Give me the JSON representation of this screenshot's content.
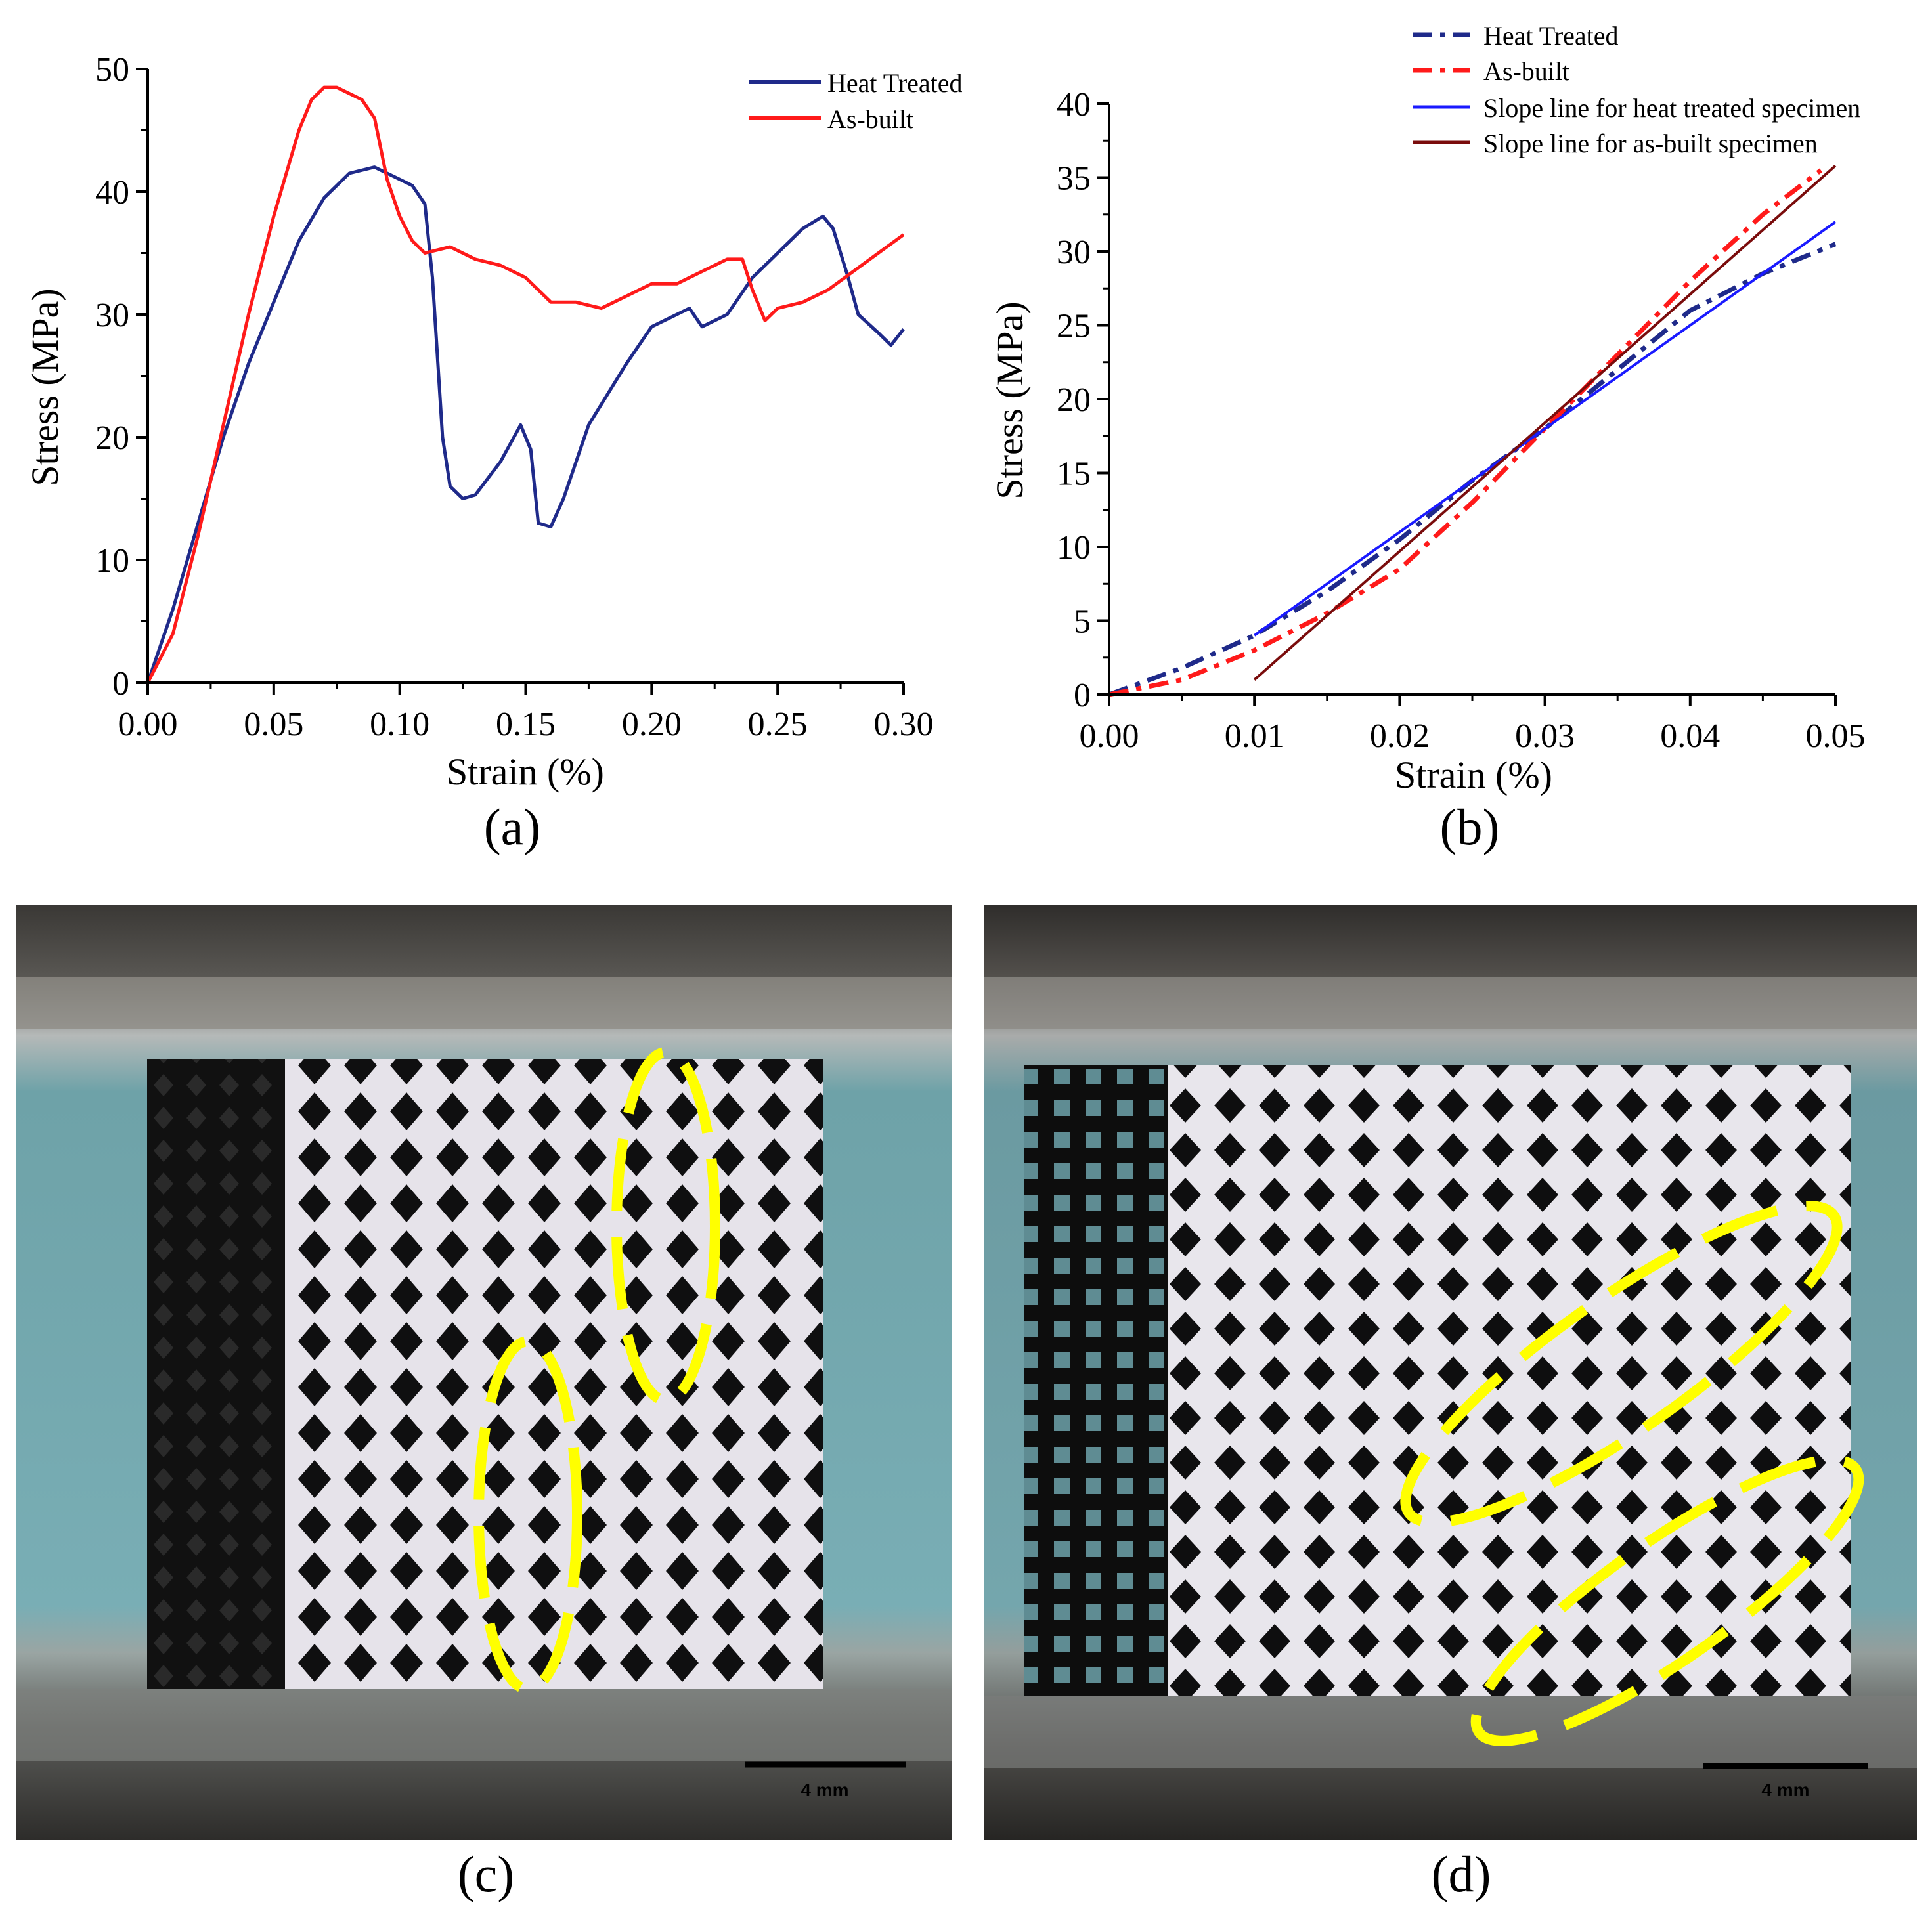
{
  "colors": {
    "heat_treated": "#1f2a8a",
    "as_built": "#ff1a1a",
    "slope_heat": "#1a1aff",
    "slope_asbuilt": "#7a0c0c",
    "highlight": "#ffff00"
  },
  "panels": {
    "a": "(a)",
    "b": "(b)",
    "c": "(c)",
    "d": "(d)"
  },
  "chart_data": [
    {
      "type": "line",
      "panel": "(a)",
      "xlabel": "Strain (%)",
      "ylabel": "Stress (MPa)",
      "xlim": [
        0,
        0.3
      ],
      "ylim": [
        0,
        50
      ],
      "xticks": [
        "0.00",
        "0.05",
        "0.10",
        "0.15",
        "0.20",
        "0.25",
        "0.30"
      ],
      "yticks": [
        "0",
        "10",
        "20",
        "30",
        "40",
        "50"
      ],
      "legend": "top-right",
      "series": [
        {
          "name": "Heat Treated",
          "x": [
            0,
            0.01,
            0.02,
            0.03,
            0.04,
            0.05,
            0.06,
            0.07,
            0.08,
            0.09,
            0.1,
            0.105,
            0.11,
            0.113,
            0.117,
            0.12,
            0.125,
            0.13,
            0.14,
            0.148,
            0.152,
            0.155,
            0.16,
            0.165,
            0.175,
            0.19,
            0.2,
            0.21,
            0.215,
            0.22,
            0.23,
            0.235,
            0.24,
            0.25,
            0.26,
            0.268,
            0.272,
            0.278,
            0.282,
            0.29,
            0.295,
            0.3
          ],
          "values": [
            0,
            6,
            13,
            20,
            26,
            31,
            36,
            39.5,
            41.5,
            42,
            41,
            40.5,
            39,
            33,
            20,
            16,
            15,
            15.3,
            18,
            21,
            19,
            13,
            12.7,
            15,
            21,
            26,
            29,
            30,
            30.5,
            29,
            30,
            31.5,
            33,
            35,
            37,
            38,
            37,
            33,
            30,
            28.5,
            27.5,
            28.8
          ]
        },
        {
          "name": "As-built",
          "x": [
            0,
            0.01,
            0.02,
            0.03,
            0.04,
            0.05,
            0.06,
            0.065,
            0.07,
            0.075,
            0.08,
            0.085,
            0.09,
            0.095,
            0.1,
            0.105,
            0.11,
            0.12,
            0.13,
            0.14,
            0.15,
            0.16,
            0.17,
            0.18,
            0.19,
            0.2,
            0.21,
            0.22,
            0.23,
            0.236,
            0.24,
            0.245,
            0.25,
            0.26,
            0.27,
            0.28,
            0.29,
            0.3
          ],
          "values": [
            0,
            4,
            12,
            21,
            30,
            38,
            45,
            47.5,
            48.5,
            48.5,
            48,
            47.5,
            46,
            41,
            38,
            36,
            35,
            35.5,
            34.5,
            34,
            33,
            31,
            31,
            30.5,
            31.5,
            32.5,
            32.5,
            33.5,
            34.5,
            34.5,
            32,
            29.5,
            30.5,
            31,
            32,
            33.5,
            35,
            36.5
          ]
        }
      ]
    },
    {
      "type": "line",
      "panel": "(b)",
      "xlabel": "Strain (%)",
      "ylabel": "Stress (MPa)",
      "xlim": [
        0,
        0.05
      ],
      "ylim": [
        0,
        40
      ],
      "xticks": [
        "0.00",
        "0.01",
        "0.02",
        "0.03",
        "0.04",
        "0.05"
      ],
      "yticks": [
        "0",
        "5",
        "10",
        "15",
        "20",
        "25",
        "30",
        "35",
        "40"
      ],
      "legend": "top",
      "series": [
        {
          "name": "Heat Treated",
          "style": "dash-dot",
          "x": [
            0,
            0.005,
            0.01,
            0.015,
            0.02,
            0.025,
            0.03,
            0.035,
            0.04,
            0.045,
            0.05
          ],
          "values": [
            0,
            1.8,
            4,
            7,
            10.5,
            14.5,
            18,
            22,
            26,
            28.5,
            30.5
          ]
        },
        {
          "name": "As-built",
          "style": "dash-dot",
          "x": [
            0,
            0.005,
            0.01,
            0.015,
            0.02,
            0.025,
            0.03,
            0.035,
            0.04,
            0.045,
            0.049
          ],
          "values": [
            0,
            1,
            3,
            5.5,
            8.5,
            13,
            18,
            23,
            28,
            32.5,
            35.5
          ]
        },
        {
          "name": "Slope line for heat treated specimen",
          "style": "solid",
          "x": [
            0.01,
            0.05
          ],
          "values": [
            4,
            32
          ]
        },
        {
          "name": "Slope line for as-built specimen",
          "style": "solid",
          "x": [
            0.01,
            0.05
          ],
          "values": [
            1,
            35.8
          ]
        }
      ]
    }
  ],
  "photos": {
    "c": {
      "scale_bar": "4 mm"
    },
    "d": {
      "scale_bar": "4 mm"
    }
  }
}
